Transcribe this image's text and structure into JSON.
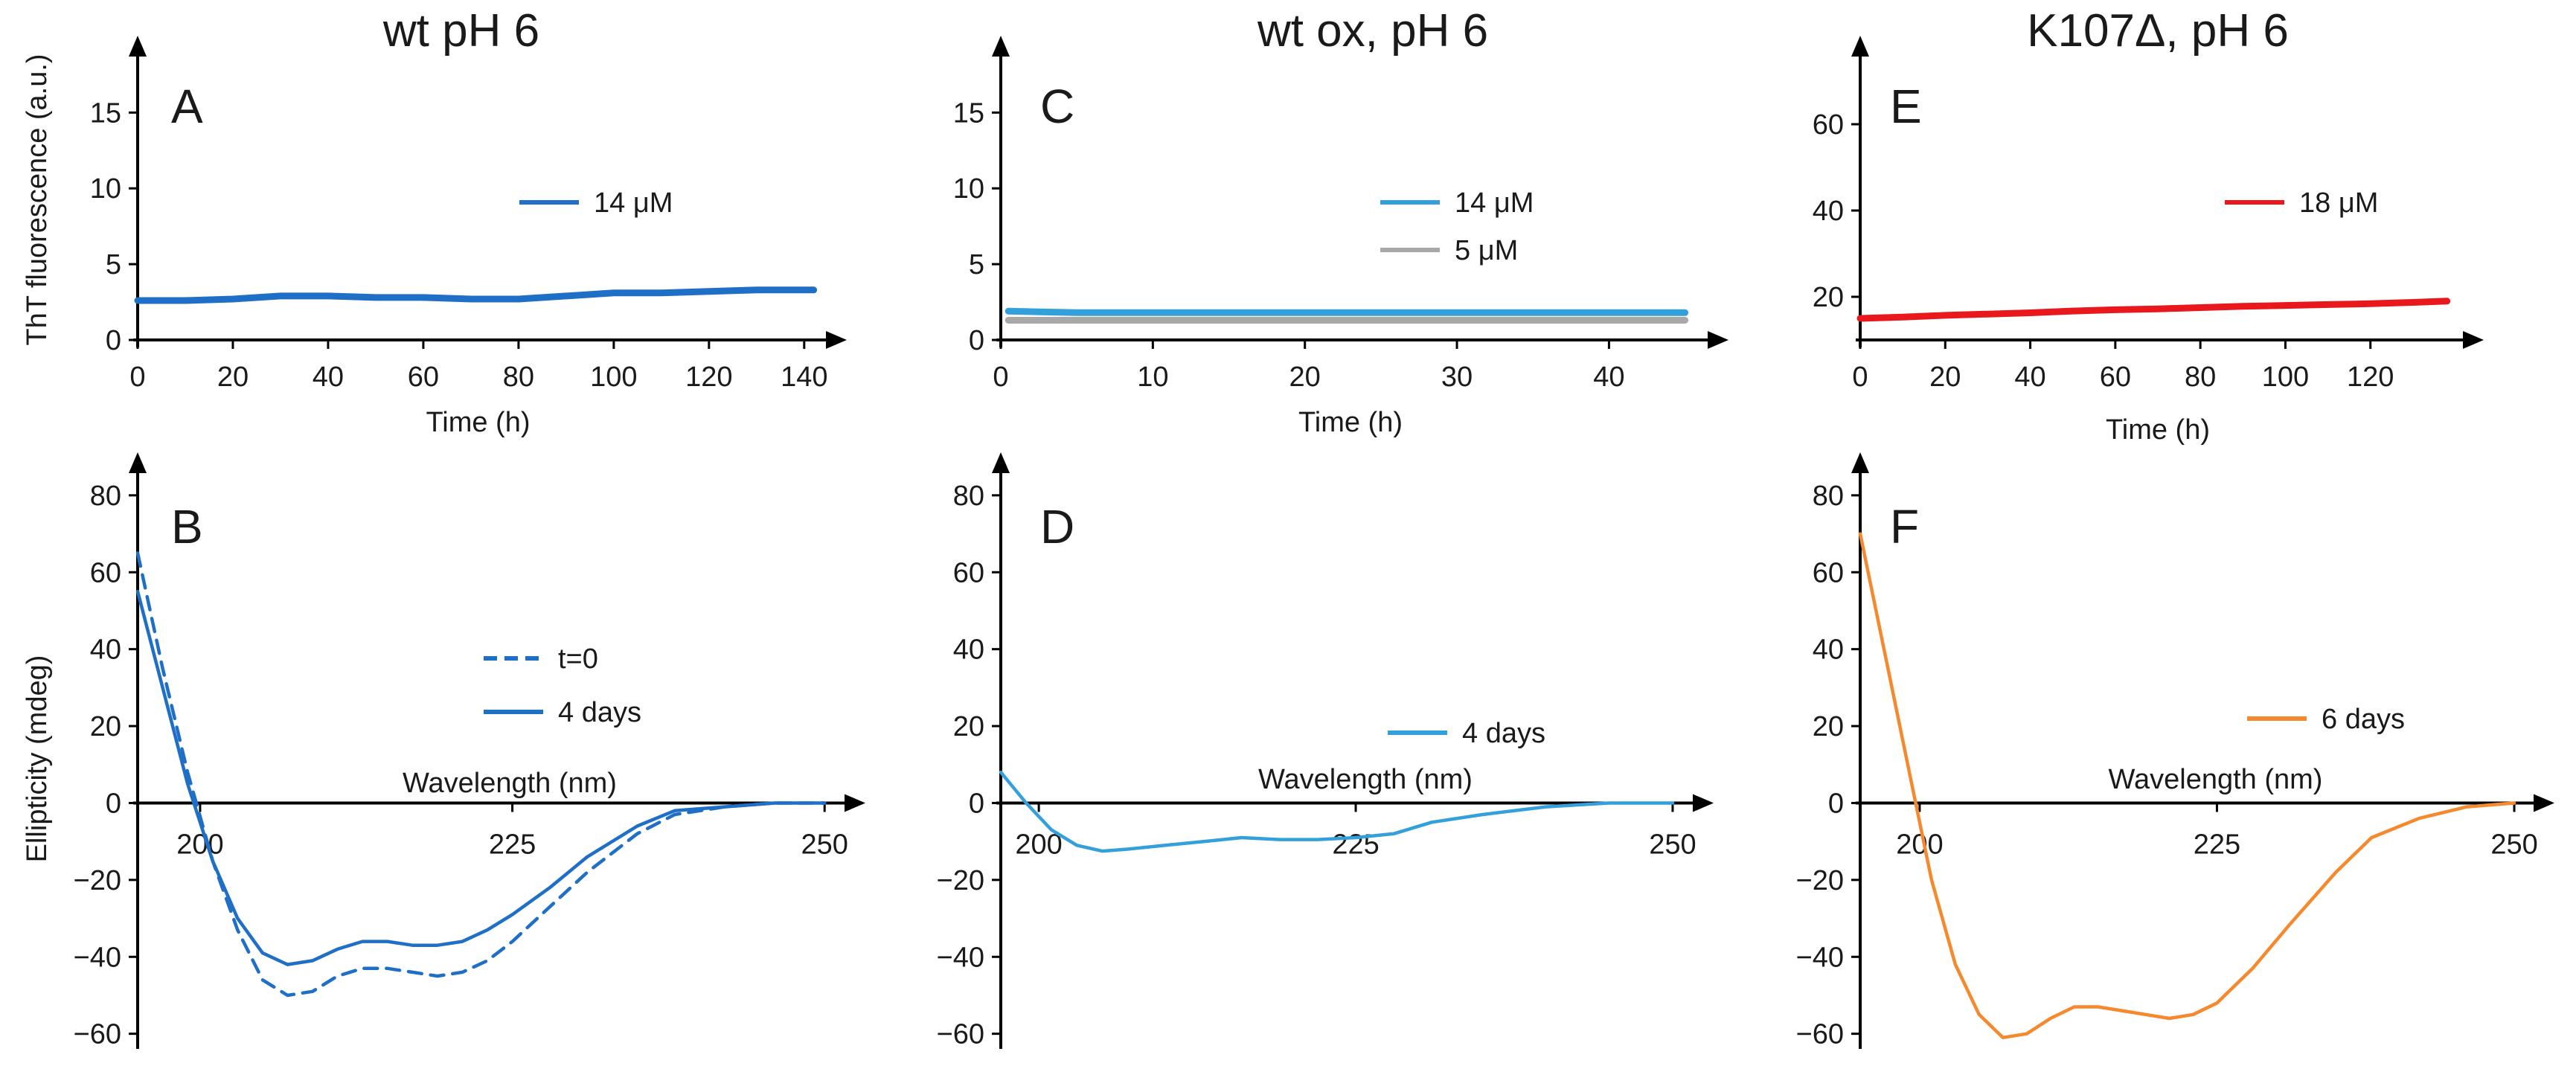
{
  "chart_data": [
    {
      "type": "line",
      "panel": "A",
      "column_title": "wt pH 6",
      "xlabel": "Time (h)",
      "ylabel": "ThT fluorescence (a.u.)",
      "xlim": [
        0,
        143
      ],
      "ylim": [
        0,
        18.5
      ],
      "xticks": [
        0,
        20,
        40,
        60,
        80,
        100,
        120,
        140
      ],
      "yticks": [
        0,
        5,
        10,
        15
      ],
      "legend_position": "right",
      "series": [
        {
          "name": "14 μM",
          "color": "#1f6fc6",
          "dash": "solid",
          "x": [
            0,
            10,
            20,
            30,
            40,
            50,
            60,
            70,
            80,
            90,
            100,
            110,
            120,
            130,
            142
          ],
          "y": [
            2.6,
            2.6,
            2.7,
            2.9,
            2.9,
            2.8,
            2.8,
            2.7,
            2.7,
            2.9,
            3.1,
            3.1,
            3.2,
            3.3,
            3.3
          ]
        }
      ]
    },
    {
      "type": "line",
      "panel": "B",
      "xlabel": "Wavelength (nm)",
      "ylabel": "Ellipticity (mdeg)",
      "xlim": [
        195,
        251
      ],
      "ylim": [
        -62,
        85
      ],
      "xticks": [
        200,
        225,
        250
      ],
      "yticks": [
        -60,
        -40,
        -20,
        0,
        20,
        40,
        60,
        80
      ],
      "legend_position": "right",
      "series": [
        {
          "name": "t=0",
          "color": "#1f6fc6",
          "dash": "dashed",
          "x": [
            195,
            197,
            199,
            201,
            203,
            205,
            207,
            209,
            211,
            213,
            215,
            217,
            219,
            221,
            223,
            225,
            228,
            231,
            235,
            238,
            242,
            246,
            250
          ],
          "y": [
            65,
            35,
            8,
            -15,
            -33,
            -46,
            -50,
            -49,
            -45,
            -43,
            -43,
            -44,
            -45,
            -44,
            -41,
            -36,
            -27,
            -18,
            -8,
            -3,
            -1,
            0,
            0
          ]
        },
        {
          "name": "4 days",
          "color": "#1f6fc6",
          "dash": "solid",
          "x": [
            195,
            197,
            199,
            201,
            203,
            205,
            207,
            209,
            211,
            213,
            215,
            217,
            219,
            221,
            223,
            225,
            228,
            231,
            235,
            238,
            242,
            246,
            250
          ],
          "y": [
            55,
            30,
            5,
            -15,
            -30,
            -39,
            -42,
            -41,
            -38,
            -36,
            -36,
            -37,
            -37,
            -36,
            -33,
            -29,
            -22,
            -14,
            -6,
            -2,
            -1,
            0,
            0
          ]
        }
      ]
    },
    {
      "type": "line",
      "panel": "C",
      "column_title": "wt ox, pH 6",
      "xlabel": "Time (h)",
      "ylabel": "",
      "xlim": [
        0,
        46
      ],
      "ylim": [
        0,
        18.5
      ],
      "xticks": [
        0,
        10,
        20,
        30,
        40
      ],
      "yticks": [
        0,
        5,
        10,
        15
      ],
      "legend_position": "right",
      "series": [
        {
          "name": "14 μM",
          "color": "#33a0dc",
          "dash": "solid",
          "x": [
            0.5,
            5,
            10,
            15,
            20,
            25,
            30,
            35,
            40,
            45
          ],
          "y": [
            1.9,
            1.8,
            1.8,
            1.8,
            1.8,
            1.8,
            1.8,
            1.8,
            1.8,
            1.8
          ]
        },
        {
          "name": "5 μM",
          "color": "#a8a8a8",
          "dash": "solid",
          "x": [
            0.5,
            5,
            10,
            15,
            20,
            25,
            30,
            35,
            40,
            45
          ],
          "y": [
            1.3,
            1.3,
            1.3,
            1.3,
            1.3,
            1.3,
            1.3,
            1.3,
            1.3,
            1.3
          ]
        }
      ]
    },
    {
      "type": "line",
      "panel": "D",
      "xlabel": "Wavelength (nm)",
      "ylabel": "",
      "xlim": [
        197,
        251
      ],
      "ylim": [
        -62,
        85
      ],
      "xticks": [
        200,
        225,
        250
      ],
      "yticks": [
        -60,
        -40,
        -20,
        0,
        20,
        40,
        60,
        80
      ],
      "legend_position": "right",
      "series": [
        {
          "name": "4 days",
          "color": "#33a0dc",
          "dash": "solid",
          "x": [
            197,
            199,
            201,
            203,
            205,
            207,
            210,
            213,
            216,
            219,
            222,
            225,
            228,
            231,
            235,
            240,
            245,
            250
          ],
          "y": [
            8,
            0,
            -7,
            -11,
            -12.5,
            -12,
            -11,
            -10,
            -9,
            -9.5,
            -9.5,
            -9,
            -8,
            -5,
            -3,
            -1,
            0,
            0
          ]
        }
      ]
    },
    {
      "type": "line",
      "panel": "E",
      "column_title": "K107Δ, pH 6",
      "xlabel": "Time (h)",
      "ylabel": "",
      "xlim": [
        0,
        140
      ],
      "ylim": [
        10,
        75
      ],
      "xticks": [
        0,
        20,
        40,
        60,
        80,
        100,
        120
      ],
      "yticks": [
        20,
        40,
        60
      ],
      "legend_position": "right",
      "series": [
        {
          "name": "18 μM",
          "color": "#e8181c",
          "dash": "solid",
          "x": [
            0,
            10,
            20,
            30,
            40,
            50,
            60,
            70,
            80,
            90,
            100,
            110,
            120,
            130,
            138
          ],
          "y": [
            15,
            15.3,
            15.7,
            16,
            16.3,
            16.7,
            17,
            17.2,
            17.5,
            17.8,
            18,
            18.2,
            18.4,
            18.7,
            19
          ]
        }
      ]
    },
    {
      "type": "line",
      "panel": "F",
      "xlabel": "Wavelength (nm)",
      "ylabel": "",
      "xlim": [
        195,
        251
      ],
      "ylim": [
        -62,
        85
      ],
      "xticks": [
        200,
        225,
        250
      ],
      "yticks": [
        -60,
        -40,
        -20,
        0,
        20,
        40,
        60,
        80
      ],
      "legend_position": "right",
      "series": [
        {
          "name": "6 days",
          "color": "#f5892e",
          "dash": "solid",
          "x": [
            195,
            197,
            199,
            201,
            203,
            205,
            207,
            209,
            211,
            213,
            215,
            217,
            219,
            221,
            223,
            225,
            228,
            231,
            235,
            238,
            242,
            246,
            250
          ],
          "y": [
            70,
            40,
            10,
            -20,
            -42,
            -55,
            -61,
            -60,
            -56,
            -53,
            -53,
            -54,
            -55,
            -56,
            -55,
            -52,
            -43,
            -32,
            -18,
            -9,
            -4,
            -1,
            0
          ]
        }
      ]
    }
  ]
}
